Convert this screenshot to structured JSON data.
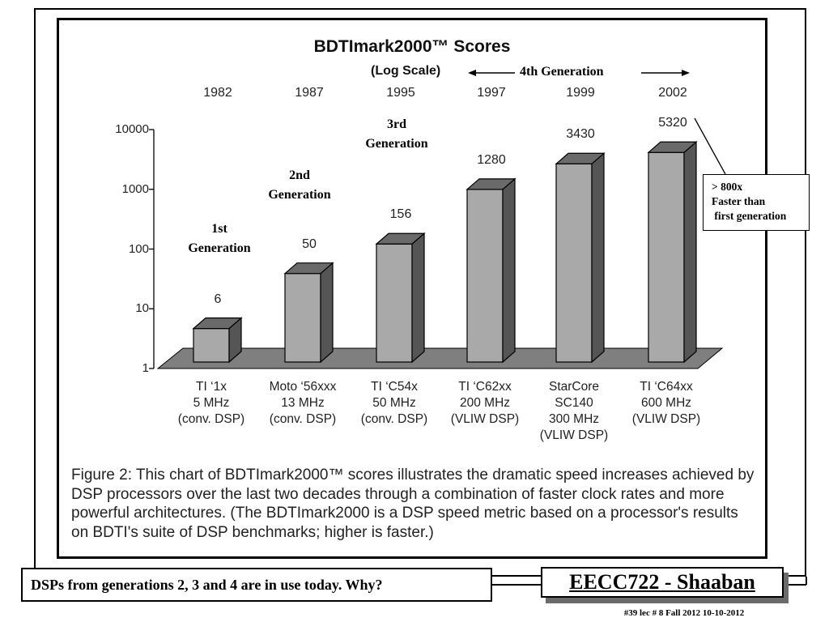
{
  "chart_data": {
    "type": "bar",
    "title": "BDTImark2000™ Scores",
    "scale_note": "(Log Scale)",
    "generation_banner": "4th  Generation",
    "y_scale": "log",
    "ylim": [
      1,
      10000
    ],
    "y_ticks": [
      "1",
      "10",
      "100",
      "1000",
      "10000"
    ],
    "years": [
      "1982",
      "1987",
      "1995",
      "1997",
      "1999",
      "2002"
    ],
    "categories": [
      [
        "TI ‘1x",
        "5 MHz",
        "(conv. DSP)"
      ],
      [
        "Moto ‘56xxx",
        "13 MHz",
        "(conv. DSP)"
      ],
      [
        "TI ‘C54x",
        "50 MHz",
        "(conv. DSP)"
      ],
      [
        "TI ‘C62xx",
        "200 MHz",
        "(VLIW DSP)"
      ],
      [
        "StarCore",
        "SC140",
        "300 MHz",
        "(VLIW DSP)"
      ],
      [
        "TI ‘C64xx",
        "600 MHz",
        "(VLIW DSP)"
      ]
    ],
    "values": [
      6,
      50,
      156,
      1280,
      3430,
      5320
    ],
    "value_labels": [
      "6",
      "50",
      "156",
      "1280",
      "3430",
      "5320"
    ],
    "generation_labels": [
      [
        "1st",
        "Generation"
      ],
      [
        "2nd",
        "Generation"
      ],
      [
        "3rd",
        "Generation"
      ]
    ],
    "bar_color": "#a9a9a9",
    "floor_color": "#7f7f7f"
  },
  "callout": [
    "> 800x",
    "Faster than",
    " first generation"
  ],
  "caption": "Figure 2: This chart of BDTImark2000™ scores illustrates the dramatic speed increases achieved by DSP processors over the last two decades through a combination of faster clock rates and more powerful architectures. (The BDTImark2000 is a DSP speed metric based on a processor's results on BDTI's suite of DSP benchmarks; higher is faster.)",
  "note": "DSPs from generations 2, 3 and 4 are in use today.  Why?",
  "course_badge": "EECC722 - Shaaban",
  "footer": "#39   lec # 8    Fall 2012   10-10-2012"
}
